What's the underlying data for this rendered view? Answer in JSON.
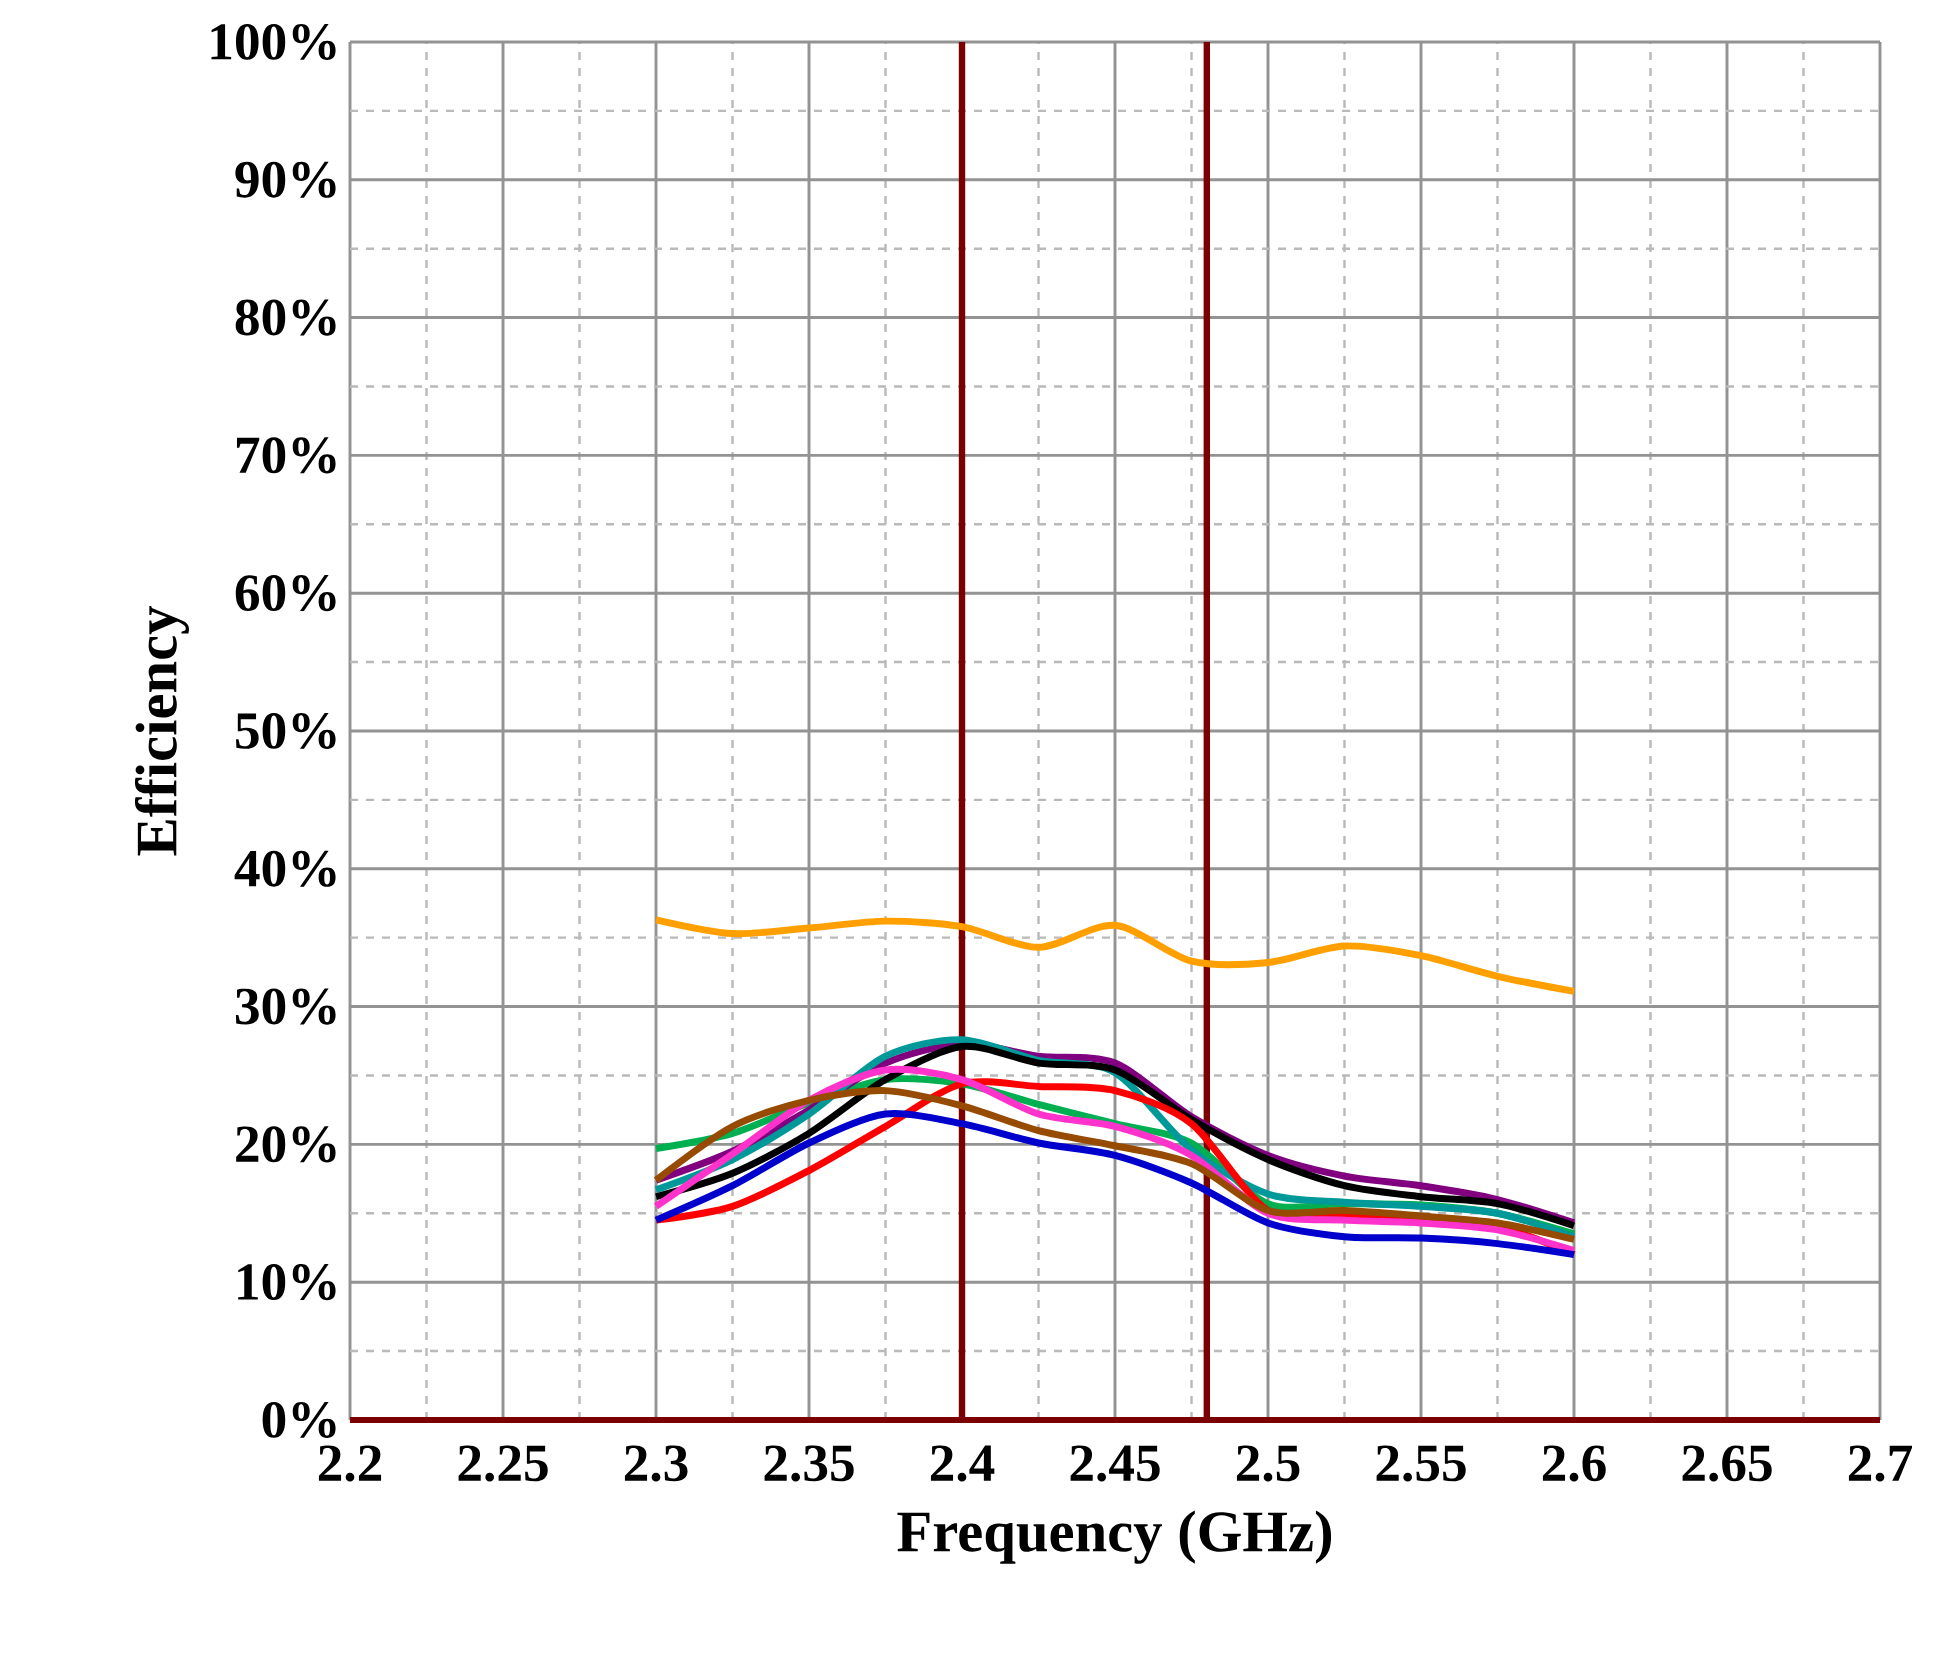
{
  "chart_data": {
    "type": "line",
    "xlabel": "Frequency (GHz)",
    "ylabel": "Efficiency",
    "x": [
      2.3,
      2.325,
      2.35,
      2.375,
      2.4,
      2.425,
      2.45,
      2.475,
      2.5,
      2.525,
      2.55,
      2.575,
      2.6
    ],
    "series": [
      {
        "color": "#ffa000",
        "values": [
          36.3,
          35.3,
          35.7,
          36.2,
          35.8,
          34.3,
          35.9,
          33.3,
          33.2,
          34.4,
          33.7,
          32.2,
          31.1
        ]
      },
      {
        "color": "#00b050",
        "values": [
          19.7,
          20.8,
          23.0,
          24.7,
          24.4,
          22.9,
          21.5,
          20.1,
          15.7,
          15.7,
          15.6,
          15.0,
          13.5
        ]
      },
      {
        "color": "#800080",
        "values": [
          17.4,
          19.5,
          22.5,
          25.9,
          27.3,
          26.4,
          25.9,
          22.0,
          19.2,
          17.7,
          17.0,
          16.0,
          14.3
        ]
      },
      {
        "color": "#009999",
        "values": [
          16.7,
          18.9,
          22.2,
          26.4,
          27.6,
          26.1,
          25.2,
          19.6,
          16.4,
          15.8,
          15.5,
          15.0,
          13.3
        ]
      },
      {
        "color": "#000000",
        "values": [
          16.2,
          17.9,
          20.8,
          24.7,
          27.1,
          25.9,
          25.4,
          21.8,
          18.9,
          17.0,
          16.2,
          15.7,
          14.1
        ]
      },
      {
        "color": "#ff0000",
        "values": [
          14.5,
          15.5,
          18.1,
          21.3,
          24.4,
          24.2,
          23.9,
          21.5,
          15.2,
          14.8,
          14.5,
          14.1,
          12.0
        ]
      },
      {
        "color": "#ff33cc",
        "values": [
          15.5,
          19.3,
          23.2,
          25.4,
          24.7,
          22.2,
          21.3,
          19.2,
          15.0,
          14.5,
          14.3,
          13.8,
          12.3
        ]
      },
      {
        "color": "#964b00",
        "values": [
          17.4,
          21.3,
          23.2,
          23.9,
          22.8,
          21.0,
          19.9,
          18.6,
          15.2,
          15.2,
          14.8,
          14.3,
          13.1
        ]
      },
      {
        "color": "#0000cc",
        "values": [
          14.5,
          17.0,
          20.1,
          22.2,
          21.5,
          20.1,
          19.2,
          17.2,
          14.3,
          13.3,
          13.2,
          12.8,
          12.0
        ]
      }
    ],
    "xlim": [
      2.2,
      2.7
    ],
    "xticks": [
      2.2,
      2.25,
      2.3,
      2.35,
      2.4,
      2.45,
      2.5,
      2.55,
      2.6,
      2.65,
      2.7
    ],
    "ylim": [
      0,
      100
    ],
    "yticks": [
      {
        "value": 0,
        "label": "0%"
      },
      {
        "value": 10,
        "label": "10%"
      },
      {
        "value": 20,
        "label": "20%"
      },
      {
        "value": 30,
        "label": "30%"
      },
      {
        "value": 40,
        "label": "40%"
      },
      {
        "value": 50,
        "label": "50%"
      },
      {
        "value": 60,
        "label": "60%"
      },
      {
        "value": 70,
        "label": "70%"
      },
      {
        "value": 80,
        "label": "80%"
      },
      {
        "value": 90,
        "label": "90%"
      },
      {
        "value": 100,
        "label": "100%"
      }
    ],
    "grid": true,
    "marker": "none",
    "line_style": "solid",
    "ref_lines": [
      {
        "axis": "x",
        "value": 2.4,
        "color": "#7b0000"
      },
      {
        "axis": "x",
        "value": 2.48,
        "color": "#7b0000"
      }
    ]
  }
}
